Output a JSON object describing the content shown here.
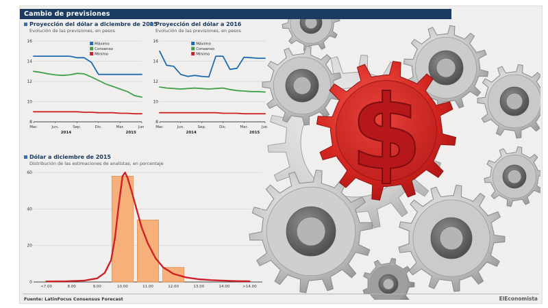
{
  "header": {
    "title": "Cambio de previsiones"
  },
  "footer": {
    "source": "Fuente: LatinFocus Consensus Forecast",
    "brand": "ElEconomista"
  },
  "illustration": {
    "dollar_sign": "$"
  },
  "colors": {
    "header_bg": "#1c3b60",
    "title_bullet": "#2e74b5",
    "max_line": "#1d6ab0",
    "consensus_line": "#3da048",
    "min_line": "#cd2027",
    "bar_fill": "#f7b07a",
    "gear_red": "#d3241f"
  },
  "chart_data": [
    {
      "type": "line",
      "title": "Proyección del dólar a diciembre de 2015",
      "subtitle": "Evolución de las previsiones, en pesos",
      "ylim": [
        8,
        16
      ],
      "yticks": [
        8,
        10,
        12,
        14,
        16
      ],
      "x_tick_labels": [
        "Mar.",
        "Jun.",
        "Sep.",
        "Dic.",
        "Mar.",
        "Jun."
      ],
      "x_tick_positions": [
        0,
        3,
        6,
        9,
        12,
        15
      ],
      "year_labels": [
        {
          "label": "2014",
          "center_index": 4.5
        },
        {
          "label": "2015",
          "center_index": 13.5
        }
      ],
      "grid": true,
      "legend_position": "top-right",
      "series": [
        {
          "name": "Máximo",
          "color": "#1d6ab0",
          "values": [
            14.5,
            14.5,
            14.5,
            14.5,
            14.5,
            14.5,
            14.35,
            14.35,
            13.9,
            12.7,
            12.7,
            12.7,
            12.7,
            12.7,
            12.7,
            12.7
          ]
        },
        {
          "name": "Consenso",
          "color": "#3da048",
          "values": [
            13.0,
            12.9,
            12.75,
            12.65,
            12.6,
            12.65,
            12.8,
            12.75,
            12.45,
            12.1,
            11.75,
            11.5,
            11.25,
            11.0,
            10.6,
            10.45
          ]
        },
        {
          "name": "Mínimo",
          "color": "#cd2027",
          "values": [
            9.0,
            9.0,
            9.0,
            9.0,
            9.0,
            9.0,
            9.0,
            8.95,
            8.95,
            8.9,
            8.9,
            8.9,
            8.85,
            8.85,
            8.8,
            8.8
          ]
        }
      ]
    },
    {
      "type": "line",
      "title": "Proyección del dólar a 2016",
      "subtitle": "Evolución de las previsiones, en pesos",
      "ylim": [
        8,
        16
      ],
      "yticks": [
        8,
        10,
        12,
        14,
        16
      ],
      "x_tick_labels": [
        "Mar.",
        "Jun.",
        "Sep.",
        "Dic.",
        "Mar.",
        "Jun."
      ],
      "x_tick_positions": [
        0,
        3,
        6,
        9,
        12,
        15
      ],
      "year_labels": [
        {
          "label": "2014",
          "center_index": 4.5
        },
        {
          "label": "2015",
          "center_index": 13.5
        }
      ],
      "grid": true,
      "legend_position": "top-center",
      "series": [
        {
          "name": "Máximo",
          "color": "#1d6ab0",
          "values": [
            15.0,
            13.6,
            13.5,
            12.7,
            12.5,
            12.6,
            12.5,
            12.45,
            14.5,
            14.5,
            13.2,
            13.3,
            14.4,
            14.35,
            14.3,
            14.3
          ]
        },
        {
          "name": "Consenso",
          "color": "#3da048",
          "values": [
            11.45,
            11.35,
            11.3,
            11.25,
            11.3,
            11.35,
            11.3,
            11.25,
            11.3,
            11.35,
            11.2,
            11.1,
            11.05,
            11.0,
            11.0,
            10.95
          ]
        },
        {
          "name": "Mínimo",
          "color": "#cd2027",
          "values": [
            8.9,
            8.9,
            8.9,
            8.9,
            8.9,
            8.9,
            8.9,
            8.9,
            8.9,
            8.85,
            8.85,
            8.85,
            8.8,
            8.8,
            8.8,
            8.8
          ]
        }
      ]
    },
    {
      "type": "histogram",
      "title": "Dólar a diciembre de 2015",
      "subtitle": "Distribución de las estimaciones de analistas, en porcentaje",
      "categories": [
        "<7.00",
        "8.00",
        "9.00",
        "10.00",
        "11.00",
        "12.00",
        "13.00",
        "14.00",
        ">14.00"
      ],
      "values": [
        0,
        0,
        0,
        58,
        34,
        8,
        0,
        0,
        0
      ],
      "ylim": [
        0,
        60
      ],
      "yticks": [
        0,
        20,
        40,
        60
      ],
      "grid": true,
      "bar_color": "#f7b07a",
      "bar_edge": "#e08848",
      "curve_color": "#cd2027",
      "curve_points": [
        [
          0,
          0.3
        ],
        [
          0.8,
          0.4
        ],
        [
          1.5,
          0.8
        ],
        [
          2.0,
          2
        ],
        [
          2.3,
          5
        ],
        [
          2.55,
          12
        ],
        [
          2.7,
          24
        ],
        [
          2.85,
          42
        ],
        [
          3.0,
          58
        ],
        [
          3.1,
          60
        ],
        [
          3.2,
          57
        ],
        [
          3.35,
          50
        ],
        [
          3.55,
          40
        ],
        [
          3.75,
          30
        ],
        [
          4.0,
          21
        ],
        [
          4.3,
          13
        ],
        [
          4.6,
          8
        ],
        [
          5.0,
          4.5
        ],
        [
          5.5,
          2.5
        ],
        [
          6.0,
          1.5
        ],
        [
          6.5,
          1.0
        ],
        [
          7.0,
          0.7
        ],
        [
          7.5,
          0.5
        ],
        [
          8.0,
          0.4
        ]
      ]
    }
  ]
}
